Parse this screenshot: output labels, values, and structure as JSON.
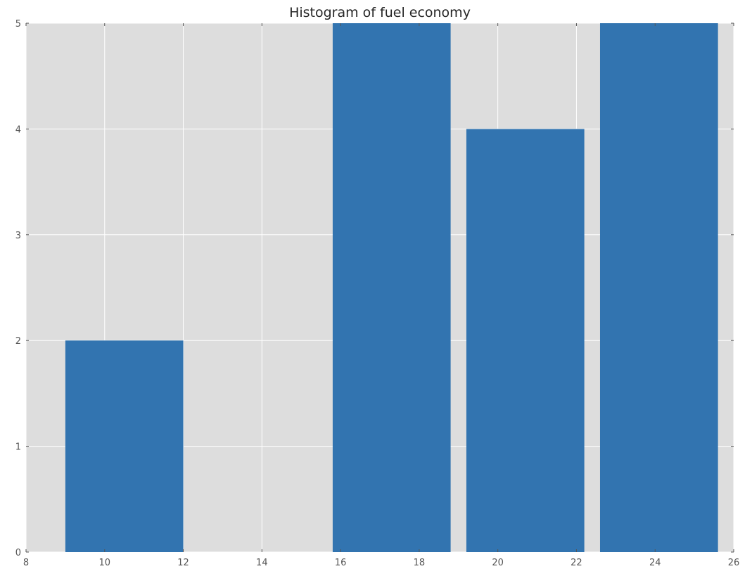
{
  "chart_data": {
    "type": "bar",
    "title": "Histogram of fuel economy",
    "xlabel": "",
    "ylabel": "",
    "xlim": [
      8,
      26
    ],
    "ylim": [
      0,
      5
    ],
    "x_ticks": [
      8,
      10,
      12,
      14,
      16,
      18,
      20,
      22,
      24,
      26
    ],
    "y_ticks": [
      0,
      1,
      2,
      3,
      4,
      5
    ],
    "grid": true,
    "legend": "none",
    "bins": [
      {
        "start": 9.0,
        "end": 12.0,
        "count": 2
      },
      {
        "start": 12.4,
        "end": 15.4,
        "count": 0
      },
      {
        "start": 15.8,
        "end": 18.8,
        "count": 5
      },
      {
        "start": 19.2,
        "end": 22.2,
        "count": 4
      },
      {
        "start": 22.6,
        "end": 25.6,
        "count": 5
      }
    ],
    "colors": {
      "bar": "#3274b0",
      "plot_background": "#dddddd",
      "grid": "#ffffff",
      "tick": "#555555",
      "title": "#262626"
    }
  }
}
